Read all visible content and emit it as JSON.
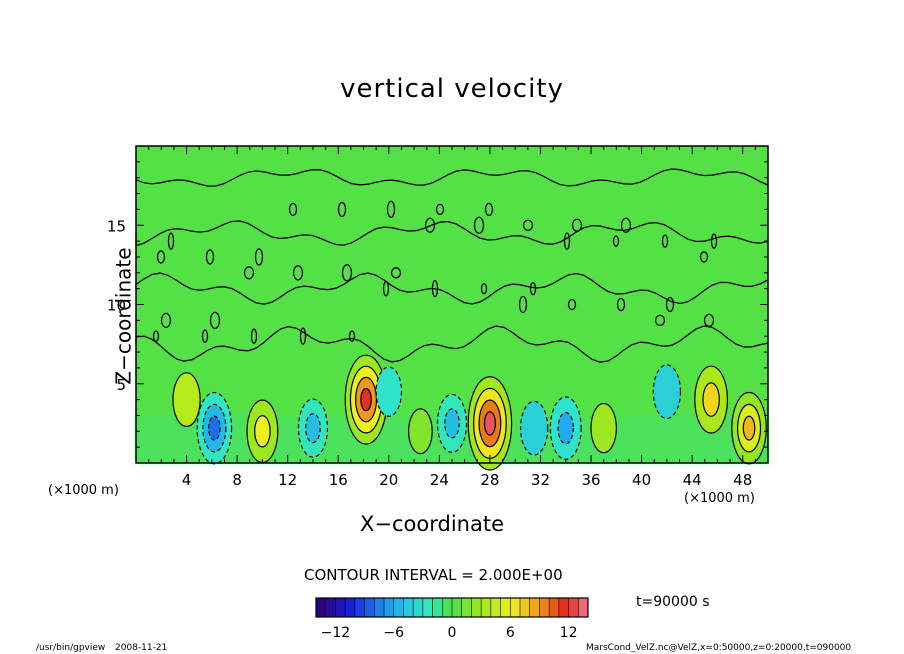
{
  "chart_data": {
    "type": "heatmap",
    "title": "vertical velocity",
    "xlabel": "X−coordinate",
    "ylabel": "Z−coordinate",
    "x_unit_left": "(×1000 m)",
    "x_unit_right": "(×1000 m)",
    "xlim": [
      0,
      50
    ],
    "ylim": [
      0,
      20
    ],
    "x_ticks": [
      "4",
      "8",
      "12",
      "16",
      "20",
      "24",
      "28",
      "32",
      "36",
      "40",
      "44",
      "48"
    ],
    "y_ticks": [
      "5",
      "10",
      "15"
    ],
    "colorbar_ticks": [
      "−12",
      "−6",
      "0",
      "6",
      "12"
    ],
    "colorbar_range": [
      -14,
      14
    ],
    "contour_interval": "CONTOUR INTERVAL = 2.000E+00",
    "time_label": "t=90000  s",
    "cells": [
      {
        "x": 4,
        "z": 4,
        "value": 4
      },
      {
        "x": 6.2,
        "z": 2.2,
        "value": -8
      },
      {
        "x": 10,
        "z": 2,
        "value": 6
      },
      {
        "x": 14,
        "z": 2.2,
        "value": -5
      },
      {
        "x": 18.2,
        "z": 4,
        "value": 12
      },
      {
        "x": 20,
        "z": 4.5,
        "value": -3
      },
      {
        "x": 22.5,
        "z": 2,
        "value": 2
      },
      {
        "x": 25,
        "z": 2.5,
        "value": -5
      },
      {
        "x": 28,
        "z": 2.5,
        "value": 13
      },
      {
        "x": 31.5,
        "z": 2.2,
        "value": -4
      },
      {
        "x": 34,
        "z": 2.2,
        "value": -6
      },
      {
        "x": 37,
        "z": 2.2,
        "value": 3
      },
      {
        "x": 42,
        "z": 4.5,
        "value": -4
      },
      {
        "x": 45.5,
        "z": 4,
        "value": 7
      },
      {
        "x": 48.5,
        "z": 2.2,
        "value": 8
      }
    ]
  },
  "footer": {
    "program": "/usr/bin/gpview",
    "date": "2008-11-21",
    "source": "MarsCond_VelZ.nc@VelZ,x=0:50000,z=0:20000,t=090000"
  }
}
